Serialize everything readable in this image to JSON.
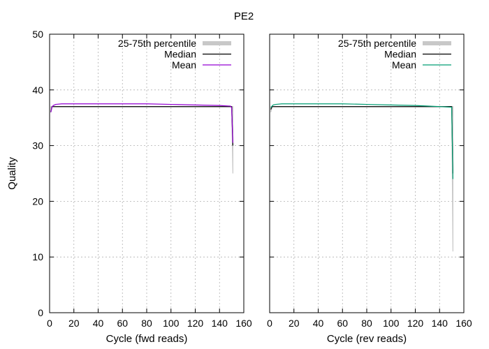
{
  "title": "PE2",
  "colors": {
    "median": "#000000",
    "band": "#c8c8c8",
    "grid": "#b0b0b0",
    "mean_fwd": "#9400d3",
    "mean_rev": "#009e73"
  },
  "chart_data": [
    {
      "type": "line",
      "title": "PE2",
      "xlabel": "Cycle (fwd reads)",
      "ylabel": "Quality",
      "xlim": [
        0,
        160
      ],
      "ylim": [
        0,
        50
      ],
      "xticks": [
        0,
        20,
        40,
        60,
        80,
        100,
        120,
        140,
        160
      ],
      "yticks": [
        0,
        10,
        20,
        30,
        40,
        50
      ],
      "grid": true,
      "legend_position": "top-right",
      "series": [
        {
          "name": "25-75th percentile",
          "kind": "band",
          "x": [
            1,
            2,
            3,
            5,
            10,
            50,
            100,
            149,
            150,
            151
          ],
          "lower": [
            36,
            37,
            37,
            37,
            37,
            37,
            37,
            37,
            37,
            25
          ],
          "upper": [
            37,
            37,
            37,
            37,
            37,
            37,
            37,
            37,
            37,
            37
          ]
        },
        {
          "name": "Median",
          "kind": "line",
          "x": [
            1,
            2,
            150,
            151
          ],
          "y": [
            36,
            37,
            37,
            30
          ]
        },
        {
          "name": "Mean",
          "kind": "line",
          "x": [
            1,
            2,
            3,
            5,
            10,
            20,
            40,
            60,
            80,
            100,
            120,
            140,
            148,
            149,
            150,
            151
          ],
          "y": [
            36.0,
            36.9,
            37.2,
            37.4,
            37.5,
            37.5,
            37.5,
            37.5,
            37.5,
            37.4,
            37.3,
            37.2,
            37.1,
            37.1,
            36.8,
            30.5
          ]
        }
      ]
    },
    {
      "type": "line",
      "title": "",
      "xlabel": "Cycle (rev reads)",
      "ylabel": "",
      "xlim": [
        0,
        160
      ],
      "ylim": [
        0,
        50
      ],
      "xticks": [
        0,
        20,
        40,
        60,
        80,
        100,
        120,
        140,
        160
      ],
      "yticks": [
        0,
        10,
        20,
        30,
        40,
        50
      ],
      "grid": true,
      "legend_position": "top-right",
      "series": [
        {
          "name": "25-75th percentile",
          "kind": "band",
          "x": [
            1,
            2,
            5,
            50,
            100,
            149,
            150,
            151
          ],
          "lower": [
            36,
            37,
            37,
            37,
            37,
            37,
            37,
            11
          ],
          "upper": [
            37,
            37,
            37,
            37,
            37,
            37,
            37,
            37
          ]
        },
        {
          "name": "Median",
          "kind": "line",
          "x": [
            1,
            2,
            150,
            151
          ],
          "y": [
            36.5,
            37,
            37,
            25
          ]
        },
        {
          "name": "Mean",
          "kind": "line",
          "x": [
            1,
            2,
            3,
            5,
            10,
            20,
            40,
            60,
            80,
            100,
            120,
            140,
            149,
            150,
            151
          ],
          "y": [
            36.8,
            37.1,
            37.3,
            37.4,
            37.5,
            37.5,
            37.5,
            37.5,
            37.4,
            37.3,
            37.2,
            37.0,
            36.9,
            36.9,
            24.0
          ]
        }
      ]
    }
  ]
}
